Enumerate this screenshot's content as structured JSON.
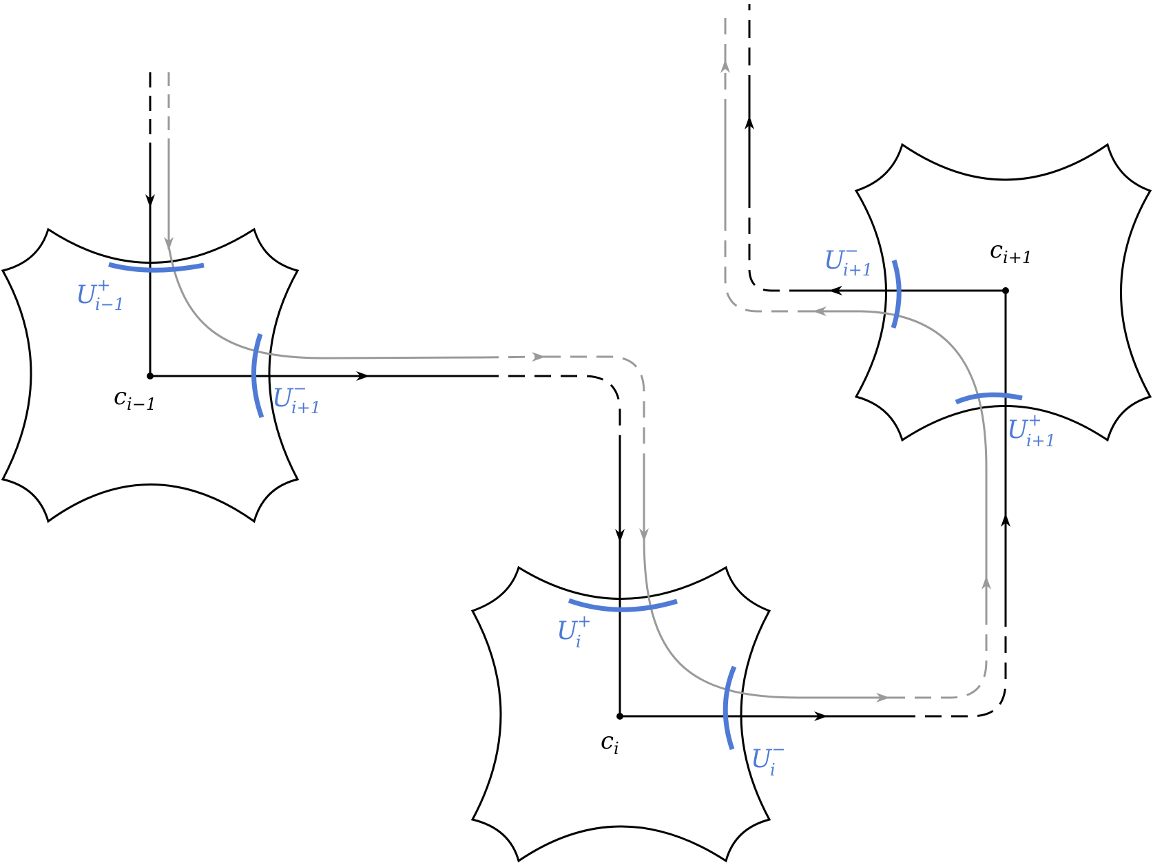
{
  "colors": {
    "outline": "#000000",
    "gray_path": "#9a9a9a",
    "highlight": "#4f7bd6"
  },
  "nodes": [
    {
      "id": "c_prev",
      "base": "c",
      "sub": "i−1",
      "sup": ""
    },
    {
      "id": "c_cur",
      "base": "c",
      "sub": "i",
      "sup": ""
    },
    {
      "id": "c_next",
      "base": "c",
      "sub": "i+1",
      "sup": ""
    }
  ],
  "regions": [
    {
      "id": "u_prev_plus",
      "base": "U",
      "sup": "+",
      "sub": "i−1"
    },
    {
      "id": "u_prev_minus",
      "base": "U",
      "sup": "−",
      "sub": "i+1"
    },
    {
      "id": "u_cur_plus",
      "base": "U",
      "sup": "+",
      "sub": "i"
    },
    {
      "id": "u_cur_minus",
      "base": "U",
      "sup": "−",
      "sub": "i"
    },
    {
      "id": "u_next_minus",
      "base": "U",
      "sup": "−",
      "sub": "i+1"
    },
    {
      "id": "u_next_plus",
      "base": "U",
      "sup": "+",
      "sub": "i+1"
    }
  ]
}
